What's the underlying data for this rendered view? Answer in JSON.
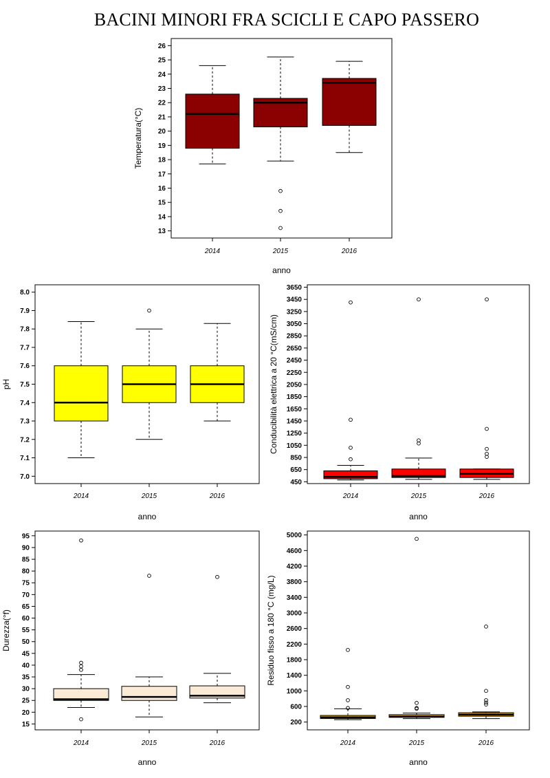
{
  "page": {
    "title": "BACINI MINORI FRA SCICLI E CAPO PASSERO"
  },
  "chart_data": [
    {
      "id": "temp",
      "type": "boxplot",
      "xlabel": "anno",
      "ylabel": "Temperatura(°C)",
      "categories": [
        "2014",
        "2015",
        "2016"
      ],
      "ylim": [
        12.5,
        26.5
      ],
      "yticks": [
        13,
        14,
        15,
        16,
        17,
        18,
        19,
        20,
        21,
        22,
        23,
        24,
        25,
        26
      ],
      "box_color": "#8b0000",
      "boxes": [
        {
          "min": 17.7,
          "q1": 18.8,
          "median": 21.2,
          "q3": 22.6,
          "max": 24.6,
          "outliers": []
        },
        {
          "min": 17.9,
          "q1": 20.3,
          "median": 22.0,
          "q3": 22.3,
          "max": 25.2,
          "outliers": [
            15.8,
            14.4,
            13.2
          ]
        },
        {
          "min": 18.5,
          "q1": 20.4,
          "median": 23.4,
          "q3": 23.7,
          "max": 24.9,
          "outliers": []
        }
      ]
    },
    {
      "id": "ph",
      "type": "boxplot",
      "xlabel": "anno",
      "ylabel": "pH",
      "categories": [
        "2014",
        "2015",
        "2016"
      ],
      "ylim": [
        6.96,
        8.04
      ],
      "yticks": [
        7.0,
        7.1,
        7.2,
        7.3,
        7.4,
        7.5,
        7.6,
        7.7,
        7.8,
        7.9,
        8.0
      ],
      "ytick_labels": [
        "7.0",
        "7.1",
        "7.2",
        "7.3",
        "7.4",
        "7.5",
        "7.6",
        "7.7",
        "7.8",
        "7.9",
        "8.0"
      ],
      "box_color": "#ffff00",
      "boxes": [
        {
          "min": 7.1,
          "q1": 7.3,
          "median": 7.4,
          "q3": 7.6,
          "max": 7.84,
          "outliers": []
        },
        {
          "min": 7.2,
          "q1": 7.4,
          "median": 7.5,
          "q3": 7.6,
          "max": 7.8,
          "outliers": [
            7.9
          ]
        },
        {
          "min": 7.3,
          "q1": 7.4,
          "median": 7.5,
          "q3": 7.6,
          "max": 7.83,
          "outliers": []
        }
      ]
    },
    {
      "id": "cond",
      "type": "boxplot",
      "xlabel": "anno",
      "ylabel": "Conducibilità elettrica a 20 °C(mS/cm)",
      "categories": [
        "2014",
        "2015",
        "2016"
      ],
      "ylim": [
        420,
        3690
      ],
      "yticks": [
        450,
        650,
        850,
        1050,
        1250,
        1450,
        1650,
        1850,
        2050,
        2250,
        2450,
        2650,
        2850,
        3050,
        3250,
        3450,
        3650
      ],
      "box_color": "#ff0000",
      "boxes": [
        {
          "min": 480,
          "q1": 500,
          "median": 530,
          "q3": 630,
          "max": 720,
          "outliers": [
            820,
            1010,
            1470,
            3400
          ]
        },
        {
          "min": 490,
          "q1": 520,
          "median": 545,
          "q3": 660,
          "max": 840,
          "outliers": [
            1080,
            1130,
            3450
          ]
        },
        {
          "min": 490,
          "q1": 520,
          "median": 580,
          "q3": 660,
          "max": 660,
          "outliers": [
            860,
            910,
            990,
            1320,
            3450
          ]
        }
      ]
    },
    {
      "id": "durezza",
      "type": "boxplot",
      "xlabel": "anno",
      "ylabel": "Durezza(°f)",
      "categories": [
        "2014",
        "2015",
        "2016"
      ],
      "ylim": [
        12.5,
        97
      ],
      "yticks": [
        15,
        20,
        25,
        30,
        35,
        40,
        45,
        50,
        55,
        60,
        65,
        70,
        75,
        80,
        85,
        90,
        95
      ],
      "box_color": "#fbead6",
      "boxes": [
        {
          "min": 22,
          "q1": 25,
          "median": 25.5,
          "q3": 30,
          "max": 36,
          "outliers": [
            17,
            38,
            39.5,
            41,
            93
          ]
        },
        {
          "min": 18,
          "q1": 25,
          "median": 26.5,
          "q3": 31,
          "max": 35,
          "outliers": [
            78
          ]
        },
        {
          "min": 24,
          "q1": 26,
          "median": 27,
          "q3": 31.2,
          "max": 36.5,
          "outliers": [
            77.5
          ]
        }
      ]
    },
    {
      "id": "residuo",
      "type": "boxplot",
      "xlabel": "anno",
      "ylabel": "Residuo fisso a 180 °C (mg/L)",
      "categories": [
        "2014",
        "2015",
        "2016"
      ],
      "ylim": [
        0,
        5100
      ],
      "yticks": [
        200,
        600,
        1000,
        1400,
        1800,
        2200,
        2600,
        3000,
        3400,
        3800,
        4200,
        4600,
        5000
      ],
      "box_color": "#ffa500",
      "boxes": [
        {
          "min": 260,
          "q1": 290,
          "median": 320,
          "q3": 370,
          "max": 540,
          "outliers": [
            560,
            760,
            1100,
            2050
          ]
        },
        {
          "min": 290,
          "q1": 320,
          "median": 340,
          "q3": 390,
          "max": 430,
          "outliers": [
            540,
            560,
            690,
            4900
          ]
        },
        {
          "min": 290,
          "q1": 350,
          "median": 390,
          "q3": 440,
          "max": 460,
          "outliers": [
            650,
            700,
            760,
            1000,
            2650
          ]
        }
      ]
    }
  ]
}
